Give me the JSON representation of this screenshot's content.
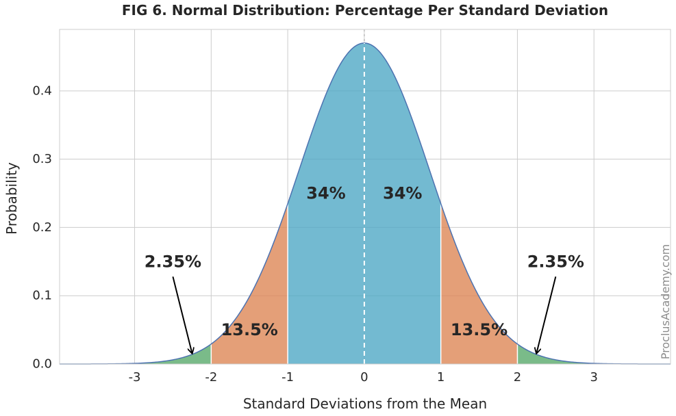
{
  "chart_data": {
    "type": "area",
    "title": "FIG 6. Normal Distribution: Percentage Per Standard Deviation",
    "xlabel": "Standard Deviations from the Mean",
    "ylabel": "Probability",
    "xlim": [
      -3.98,
      4.0
    ],
    "ylim": [
      0,
      0.49
    ],
    "xticks": [
      -3,
      -2,
      -1,
      0,
      1,
      2,
      3
    ],
    "xtick_labels": [
      "-3",
      "-2",
      "-1",
      "0",
      "1",
      "2",
      "3"
    ],
    "yticks": [
      0.0,
      0.1,
      0.2,
      0.3,
      0.4
    ],
    "ytick_labels": [
      "0.0",
      "0.1",
      "0.2",
      "0.3",
      "0.4"
    ],
    "grid": true,
    "curve": {
      "distribution": "normal",
      "mean": 0,
      "peak": 0.47,
      "color": "#4c72b0"
    },
    "regions": [
      {
        "from": -4.0,
        "to": -3.0,
        "color": "#c44e52"
      },
      {
        "from": -3.0,
        "to": -2.0,
        "color": "#55a868"
      },
      {
        "from": -2.0,
        "to": -1.0,
        "color": "#dd8452"
      },
      {
        "from": -1.0,
        "to": 0.0,
        "color": "#4ba7c4"
      },
      {
        "from": 0.0,
        "to": 1.0,
        "color": "#4ba7c4"
      },
      {
        "from": 1.0,
        "to": 2.0,
        "color": "#dd8452"
      },
      {
        "from": 2.0,
        "to": 3.0,
        "color": "#55a868"
      },
      {
        "from": 3.0,
        "to": 4.0,
        "color": "#c44e52"
      }
    ],
    "mean_line": {
      "x": 0,
      "style": "dashed",
      "color": "#ffffff"
    },
    "labels": [
      {
        "text": "34%",
        "x": -0.5,
        "y": 0.25
      },
      {
        "text": "34%",
        "x": 0.5,
        "y": 0.25
      },
      {
        "text": "13.5%",
        "x": -1.5,
        "y": 0.05
      },
      {
        "text": "13.5%",
        "x": 1.5,
        "y": 0.05
      }
    ],
    "arrows": [
      {
        "text": "2.35%",
        "text_x": -2.5,
        "text_y": 0.15,
        "tip_x": -2.25,
        "tip_y": 0.016
      },
      {
        "text": "2.35%",
        "text_x": 2.5,
        "text_y": 0.15,
        "tip_x": 2.25,
        "tip_y": 0.016
      }
    ]
  },
  "watermark": "ProclusAcademy.com"
}
